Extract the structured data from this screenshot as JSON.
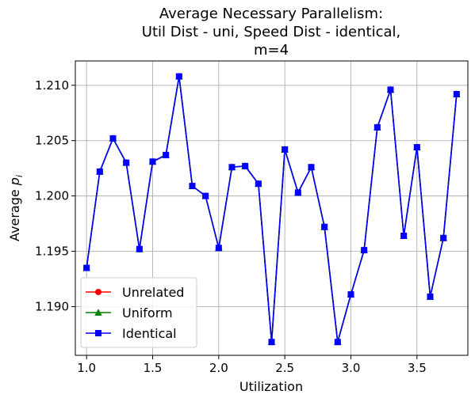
{
  "chart_data": {
    "type": "line",
    "title_lines": [
      "Average Necessary Parallelism:",
      "Util Dist - uni, Speed Dist - identical,",
      "m=4"
    ],
    "xlabel": "Utilization",
    "ylabel_main": "Average ",
    "ylabel_symbol": "p",
    "ylabel_subscript": "i",
    "xlim": [
      0.915,
      3.885
    ],
    "ylim": [
      1.1856,
      1.2122
    ],
    "xticks": [
      1.0,
      1.5,
      2.0,
      2.5,
      3.0,
      3.5
    ],
    "xtick_labels": [
      "1.0",
      "1.5",
      "2.0",
      "2.5",
      "3.0",
      "3.5"
    ],
    "yticks": [
      1.19,
      1.195,
      1.2,
      1.205,
      1.21
    ],
    "ytick_labels": [
      "1.190",
      "1.195",
      "1.200",
      "1.205",
      "1.210"
    ],
    "grid": true,
    "legend_position": "lower-left",
    "x": [
      1.0,
      1.1,
      1.2,
      1.3,
      1.4,
      1.5,
      1.6,
      1.7,
      1.8,
      1.9,
      2.0,
      2.1,
      2.2,
      2.3,
      2.4,
      2.5,
      2.6,
      2.7,
      2.8,
      2.9,
      3.0,
      3.1,
      3.2,
      3.3,
      3.4,
      3.5,
      3.6,
      3.7,
      3.8
    ],
    "series": [
      {
        "name": "Unrelated",
        "color": "#ff0000",
        "marker": "circle",
        "values": [
          1.1935,
          1.2022,
          1.2052,
          1.203,
          1.1952,
          1.2031,
          1.2037,
          1.2108,
          1.2009,
          1.2,
          1.1953,
          1.2026,
          1.2027,
          1.2011,
          1.1868,
          1.2042,
          1.2003,
          1.2026,
          1.1972,
          1.1868,
          1.1911,
          1.1951,
          1.2062,
          1.2096,
          1.1964,
          1.2044,
          1.1909,
          1.1962,
          1.2092
        ]
      },
      {
        "name": "Uniform",
        "color": "#008000",
        "marker": "triangle",
        "values": [
          1.1935,
          1.2022,
          1.2052,
          1.203,
          1.1952,
          1.2031,
          1.2037,
          1.2108,
          1.2009,
          1.2,
          1.1953,
          1.2026,
          1.2027,
          1.2011,
          1.1868,
          1.2042,
          1.2003,
          1.2026,
          1.1972,
          1.1868,
          1.1911,
          1.1951,
          1.2062,
          1.2096,
          1.1964,
          1.2044,
          1.1909,
          1.1962,
          1.2092
        ]
      },
      {
        "name": "Identical",
        "color": "#0000ff",
        "marker": "square",
        "values": [
          1.1935,
          1.2022,
          1.2052,
          1.203,
          1.1952,
          1.2031,
          1.2037,
          1.2108,
          1.2009,
          1.2,
          1.1953,
          1.2026,
          1.2027,
          1.2011,
          1.1868,
          1.2042,
          1.2003,
          1.2026,
          1.1972,
          1.1868,
          1.1911,
          1.1951,
          1.2062,
          1.2096,
          1.1964,
          1.2044,
          1.1909,
          1.1962,
          1.2092
        ]
      }
    ]
  }
}
